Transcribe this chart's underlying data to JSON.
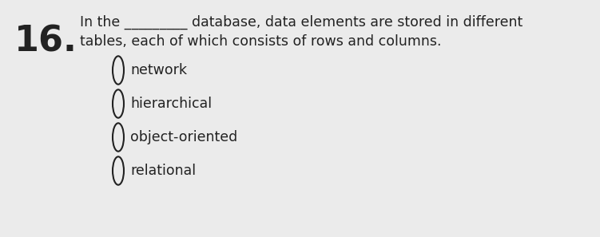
{
  "background_color": "#ebebeb",
  "question_number": "16.",
  "question_number_fontsize": 32,
  "question_text_line1": "In the _________ database, data elements are stored in different",
  "question_text_line2": "tables, each of which consists of rows and columns.",
  "question_fontsize": 12.5,
  "options": [
    "network",
    "hierarchical",
    "object-oriented",
    "relational"
  ],
  "options_fontsize": 12.5,
  "text_color": "#222222"
}
